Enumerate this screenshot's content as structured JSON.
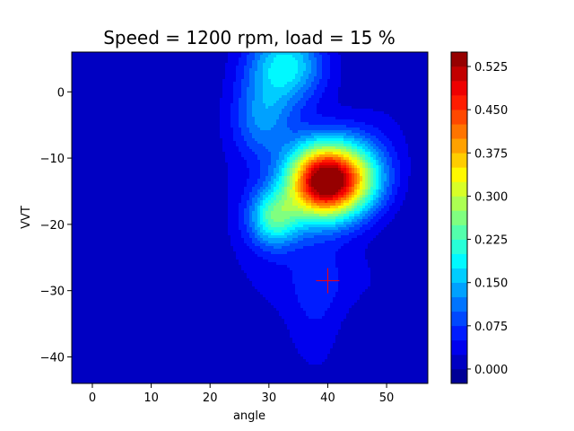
{
  "chart_data": {
    "type": "heatmap",
    "title": "Speed = 1200 rpm, load = 15 %",
    "xlabel": "angle",
    "ylabel": "VVT",
    "xlim": [
      -3.5,
      57
    ],
    "ylim": [
      -44,
      6
    ],
    "xticks": [
      "0",
      "10",
      "20",
      "30",
      "40",
      "50"
    ],
    "yticks": [
      "0",
      "−10",
      "−20",
      "−30",
      "−40"
    ],
    "colormap": "jet",
    "clim": [
      -0.025,
      0.55
    ],
    "levels": 23,
    "colorbar_ticks": [
      "0.000",
      "0.075",
      "0.150",
      "0.225",
      "0.300",
      "0.375",
      "0.450",
      "0.525"
    ],
    "peak": {
      "angle": 39,
      "vvt": -13.5,
      "value": 0.55
    },
    "marker": {
      "angle": 40,
      "vvt": -28.5,
      "shape": "plus",
      "color": "#ff0000"
    }
  }
}
